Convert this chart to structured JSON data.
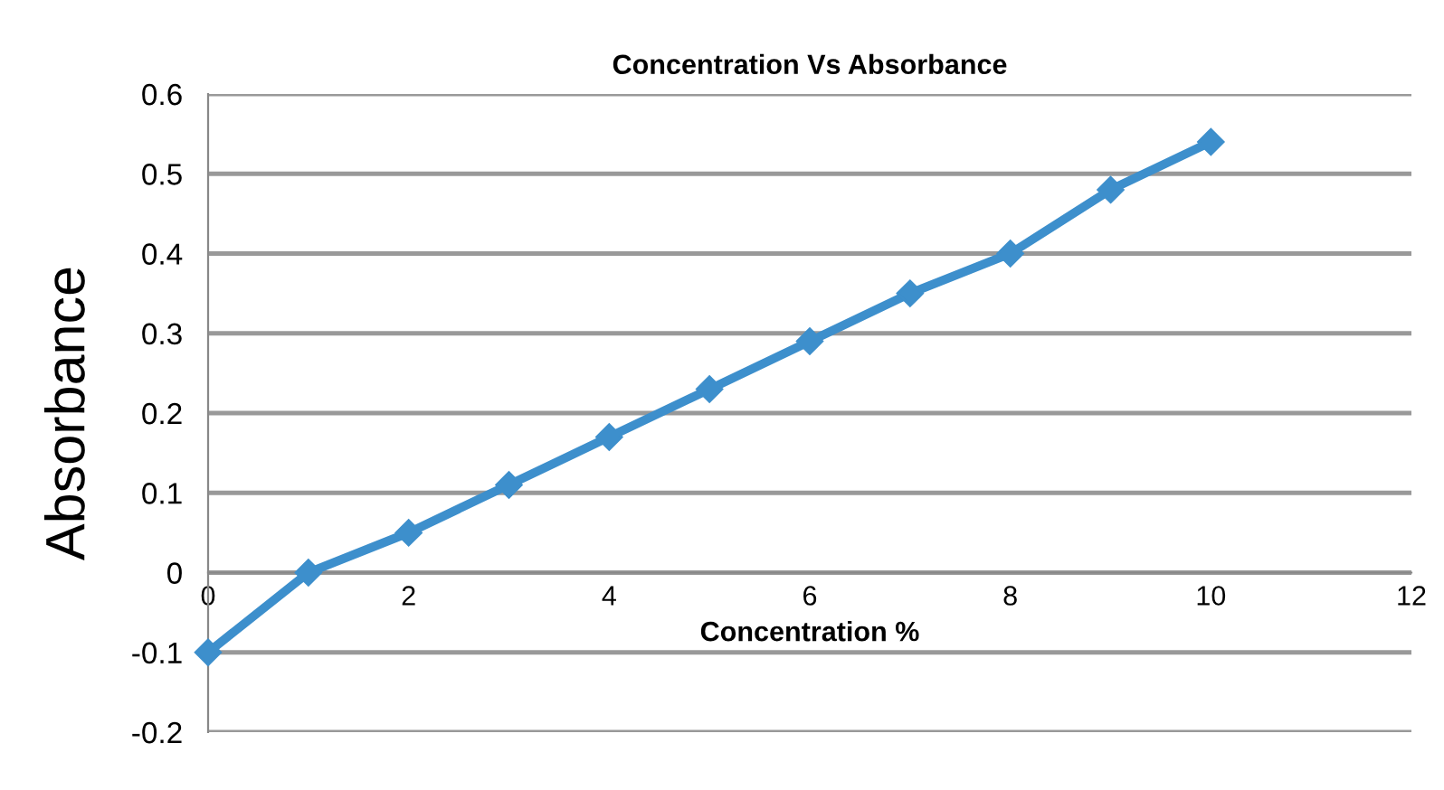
{
  "chart_data": {
    "type": "line",
    "title": "Concentration Vs Absorbance",
    "xlabel": "Concentration %",
    "ylabel": "Absorbance",
    "x": [
      0,
      1,
      2,
      3,
      4,
      5,
      6,
      7,
      8,
      9,
      10
    ],
    "series": [
      {
        "color": "#3d8fcc",
        "values": [
          -0.1,
          0,
          0.05,
          0.11,
          0.17,
          0.23,
          0.29,
          0.35,
          0.4,
          0.48,
          0.54
        ]
      }
    ],
    "xlim": [
      0,
      12
    ],
    "xticks": [
      0,
      2,
      4,
      6,
      8,
      10,
      12
    ],
    "ylim": [
      -0.2,
      0.6
    ],
    "yticks": [
      -0.2,
      -0.1,
      0,
      0.1,
      0.2,
      0.3,
      0.4,
      0.5,
      0.6
    ],
    "grid": "y",
    "marker": "diamond",
    "line_style": "solid"
  }
}
